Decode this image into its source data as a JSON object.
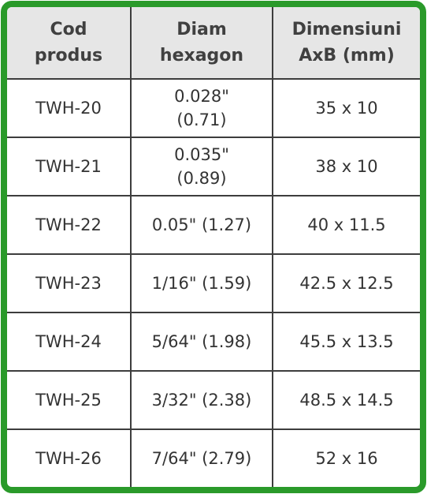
{
  "table": {
    "header": [
      "Cod\nprodus",
      "Diam\nhexagon",
      "Dimensiuni\nAxB   (mm)"
    ],
    "rows": [
      [
        "TWH-20",
        "0.028\"\n(0.71)",
        "35 x 10"
      ],
      [
        "TWH-21",
        "0.035\"\n(0.89)",
        "38 x 10"
      ],
      [
        "TWH-22",
        "0.05\" (1.27)",
        "40 x 11.5"
      ],
      [
        "TWH-23",
        "1/16\" (1.59)",
        "42.5 x 12.5"
      ],
      [
        "TWH-24",
        "5/64\" (1.98)",
        "45.5 x 13.5"
      ],
      [
        "TWH-25",
        "3/32\" (2.38)",
        "48.5 x 14.5"
      ],
      [
        "TWH-26",
        "7/64\" (2.79)",
        "52 x 16"
      ]
    ]
  }
}
